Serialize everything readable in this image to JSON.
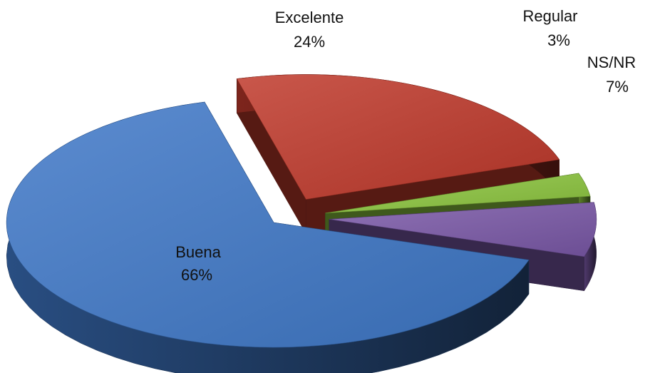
{
  "chart_data": {
    "type": "pie",
    "title": "",
    "slices": [
      {
        "name": "Excelente",
        "value": 24,
        "label": "24%",
        "color": "#c0392b"
      },
      {
        "name": "Regular",
        "value": 3,
        "label": "3%",
        "color": "#8dc63f"
      },
      {
        "name": "NS/NR",
        "value": 7,
        "label": "7%",
        "color": "#7b59a8"
      },
      {
        "name": "Buena",
        "value": 66,
        "label": "66%",
        "color": "#3f78c8"
      }
    ],
    "style": "3d-exploded"
  }
}
